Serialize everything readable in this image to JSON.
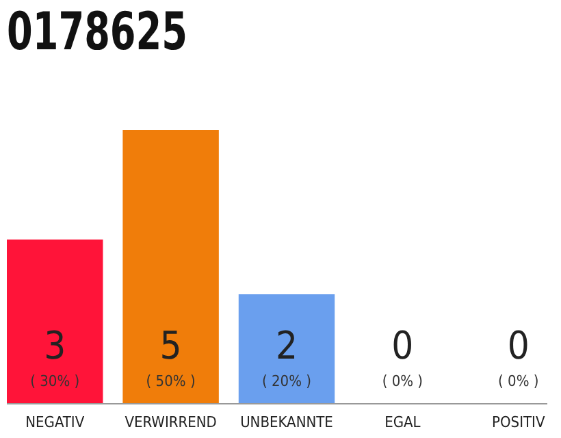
{
  "chart_data": {
    "type": "bar",
    "title": "0178625",
    "categories": [
      "NEGATIV",
      "VERWIRREND",
      "UNBEKANNTE",
      "EGAL",
      "POSITIV"
    ],
    "values": [
      3,
      5,
      2,
      0,
      0
    ],
    "colors": [
      "#ff1439",
      "#f07d0a",
      "#6a9fee",
      "#9e9e9e",
      "#9e9e9e"
    ],
    "ylim": [
      0,
      5
    ],
    "data_labels": true,
    "annotations": [
      "( 30% )",
      "( 50% )",
      "( 20% )",
      "( 0% )",
      "( 0% )"
    ]
  }
}
